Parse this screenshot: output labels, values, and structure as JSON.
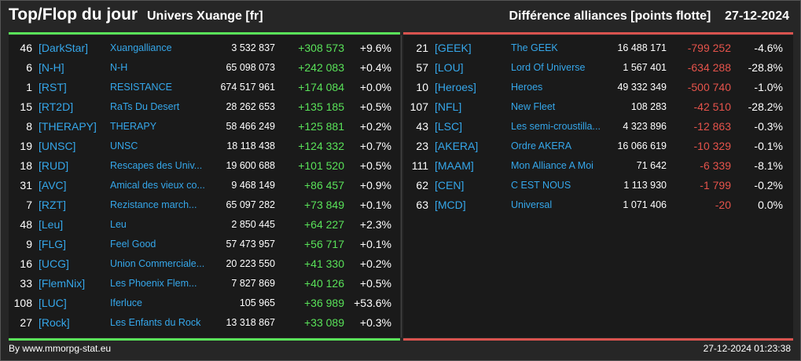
{
  "header": {
    "title": "Top/Flop du jour",
    "universe": "Univers Xuange [fr]",
    "metric": "Différence alliances [points flotte]",
    "date": "27-12-2024"
  },
  "top": [
    {
      "rank": "46",
      "tag": "[DarkStar]",
      "name": "Xuangalliance",
      "points": "3 532 837",
      "diff": "+308 573",
      "pct": "+9.6%"
    },
    {
      "rank": "6",
      "tag": "[N-H]",
      "name": "N-H",
      "points": "65 098 073",
      "diff": "+242 083",
      "pct": "+0.4%"
    },
    {
      "rank": "1",
      "tag": "[RST]",
      "name": "RESISTANCE",
      "points": "674 517 961",
      "diff": "+174 084",
      "pct": "+0.0%"
    },
    {
      "rank": "15",
      "tag": "[RT2D]",
      "name": "RaTs Du Desert",
      "points": "28 262 653",
      "diff": "+135 185",
      "pct": "+0.5%"
    },
    {
      "rank": "8",
      "tag": "[THERAPY]",
      "name": "THERAPY",
      "points": "58 466 249",
      "diff": "+125 881",
      "pct": "+0.2%"
    },
    {
      "rank": "19",
      "tag": "[UNSC]",
      "name": "UNSC",
      "points": "18 118 438",
      "diff": "+124 332",
      "pct": "+0.7%"
    },
    {
      "rank": "18",
      "tag": "[RUD]",
      "name": "Rescapes des Univ...",
      "points": "19 600 688",
      "diff": "+101 520",
      "pct": "+0.5%"
    },
    {
      "rank": "31",
      "tag": "[AVC]",
      "name": "Amical des vieux co...",
      "points": "9 468 149",
      "diff": "+86 457",
      "pct": "+0.9%"
    },
    {
      "rank": "7",
      "tag": "[RZT]",
      "name": "Rezistance march...",
      "points": "65 097 282",
      "diff": "+73 849",
      "pct": "+0.1%"
    },
    {
      "rank": "48",
      "tag": "[Leu]",
      "name": "Leu",
      "points": "2 850 445",
      "diff": "+64 227",
      "pct": "+2.3%"
    },
    {
      "rank": "9",
      "tag": "[FLG]",
      "name": "Feel Good",
      "points": "57 473 957",
      "diff": "+56 717",
      "pct": "+0.1%"
    },
    {
      "rank": "16",
      "tag": "[UCG]",
      "name": "Union Commerciale...",
      "points": "20 223 550",
      "diff": "+41 330",
      "pct": "+0.2%"
    },
    {
      "rank": "33",
      "tag": "[FlemNix]",
      "name": "Les Phoenix Flem...",
      "points": "7 827 869",
      "diff": "+40 126",
      "pct": "+0.5%"
    },
    {
      "rank": "108",
      "tag": "[LUC]",
      "name": "Iferluce",
      "points": "105 965",
      "diff": "+36 989",
      "pct": "+53.6%"
    },
    {
      "rank": "27",
      "tag": "[Rock]",
      "name": "Les Enfants du Rock",
      "points": "13 318 867",
      "diff": "+33 089",
      "pct": "+0.3%"
    }
  ],
  "flop": [
    {
      "rank": "21",
      "tag": "[GEEK]",
      "name": "The GEEK",
      "points": "16 488 171",
      "diff": "-799 252",
      "pct": "-4.6%"
    },
    {
      "rank": "57",
      "tag": "[LOU]",
      "name": "Lord Of Universe",
      "points": "1 567 401",
      "diff": "-634 288",
      "pct": "-28.8%"
    },
    {
      "rank": "10",
      "tag": "[Heroes]",
      "name": "Heroes",
      "points": "49 332 349",
      "diff": "-500 740",
      "pct": "-1.0%"
    },
    {
      "rank": "107",
      "tag": "[NFL]",
      "name": "New Fleet",
      "points": "108 283",
      "diff": "-42 510",
      "pct": "-28.2%"
    },
    {
      "rank": "43",
      "tag": "[LSC]",
      "name": "Les semi-croustilla...",
      "points": "4 323 896",
      "diff": "-12 863",
      "pct": "-0.3%"
    },
    {
      "rank": "23",
      "tag": "[AKERA]",
      "name": "Ordre AKERA",
      "points": "16 066 619",
      "diff": "-10 329",
      "pct": "-0.1%"
    },
    {
      "rank": "111",
      "tag": "[MAAM]",
      "name": "Mon Alliance A Moi",
      "points": "71 642",
      "diff": "-6 339",
      "pct": "-8.1%"
    },
    {
      "rank": "62",
      "tag": "[CEN]",
      "name": "C EST NOUS",
      "points": "1 113 930",
      "diff": "-1 799",
      "pct": "-0.2%"
    },
    {
      "rank": "63",
      "tag": "[MCD]",
      "name": "Universal",
      "points": "1 071 406",
      "diff": "-20",
      "pct": "0.0%"
    }
  ],
  "footer": {
    "source": "By www.mmorpg-stat.eu",
    "timestamp": "27-12-2024 01:23:38"
  },
  "colors": {
    "positive": "#59e259",
    "negative": "#e5534b",
    "link": "#35a7ea"
  }
}
